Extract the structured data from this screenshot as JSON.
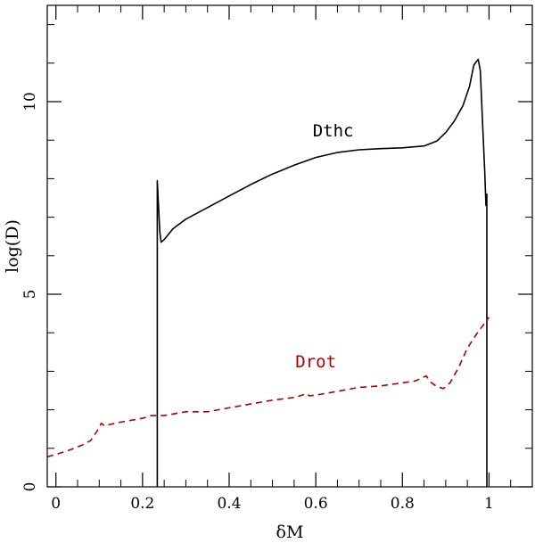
{
  "chart_data": {
    "type": "line",
    "xlabel": "δM",
    "ylabel": "log(D)",
    "xlim": [
      -0.02,
      1.1
    ],
    "ylim": [
      0,
      12.5
    ],
    "grid": false,
    "x_ticks": [
      0,
      0.2,
      0.4,
      0.6,
      0.8,
      1
    ],
    "x_tick_labels": [
      "0",
      "0.2",
      "0.4",
      "0.6",
      "0.8",
      "1"
    ],
    "x_minor_step": 0.05,
    "y_ticks": [
      0,
      5,
      10
    ],
    "y_tick_labels": [
      "0",
      "5",
      "10"
    ],
    "y_minor_step": 1,
    "series": [
      {
        "name": "Dthc",
        "color": "#000000",
        "style": "solid",
        "label_position": {
          "x": 0.64,
          "y": 9.1
        },
        "points": [
          [
            0.234,
            0
          ],
          [
            0.234,
            7.95
          ],
          [
            0.236,
            7.5
          ],
          [
            0.24,
            6.6
          ],
          [
            0.243,
            6.35
          ],
          [
            0.25,
            6.42
          ],
          [
            0.27,
            6.7
          ],
          [
            0.3,
            6.95
          ],
          [
            0.35,
            7.25
          ],
          [
            0.4,
            7.55
          ],
          [
            0.45,
            7.85
          ],
          [
            0.5,
            8.12
          ],
          [
            0.55,
            8.35
          ],
          [
            0.6,
            8.55
          ],
          [
            0.65,
            8.68
          ],
          [
            0.7,
            8.75
          ],
          [
            0.75,
            8.78
          ],
          [
            0.8,
            8.8
          ],
          [
            0.85,
            8.85
          ],
          [
            0.88,
            8.98
          ],
          [
            0.9,
            9.2
          ],
          [
            0.92,
            9.5
          ],
          [
            0.94,
            9.9
          ],
          [
            0.955,
            10.4
          ],
          [
            0.965,
            10.95
          ],
          [
            0.975,
            11.1
          ],
          [
            0.98,
            10.8
          ],
          [
            0.985,
            9.5
          ],
          [
            0.99,
            8.2
          ],
          [
            0.993,
            7.3
          ],
          [
            0.995,
            7.6
          ],
          [
            0.995,
            0
          ]
        ]
      },
      {
        "name": "Drot",
        "color": "#b00000",
        "style": "dashed",
        "label_position": {
          "x": 0.6,
          "y": 3.1
        },
        "points": [
          [
            -0.02,
            0.78
          ],
          [
            0.0,
            0.84
          ],
          [
            0.03,
            0.95
          ],
          [
            0.06,
            1.08
          ],
          [
            0.08,
            1.2
          ],
          [
            0.095,
            1.45
          ],
          [
            0.105,
            1.65
          ],
          [
            0.112,
            1.58
          ],
          [
            0.125,
            1.62
          ],
          [
            0.15,
            1.68
          ],
          [
            0.2,
            1.78
          ],
          [
            0.22,
            1.85
          ],
          [
            0.25,
            1.85
          ],
          [
            0.3,
            1.95
          ],
          [
            0.35,
            1.95
          ],
          [
            0.4,
            2.05
          ],
          [
            0.45,
            2.15
          ],
          [
            0.5,
            2.25
          ],
          [
            0.55,
            2.32
          ],
          [
            0.58,
            2.42
          ],
          [
            0.585,
            2.36
          ],
          [
            0.6,
            2.38
          ],
          [
            0.65,
            2.48
          ],
          [
            0.7,
            2.58
          ],
          [
            0.75,
            2.62
          ],
          [
            0.8,
            2.7
          ],
          [
            0.83,
            2.75
          ],
          [
            0.855,
            2.88
          ],
          [
            0.865,
            2.72
          ],
          [
            0.88,
            2.6
          ],
          [
            0.895,
            2.55
          ],
          [
            0.91,
            2.7
          ],
          [
            0.93,
            3.1
          ],
          [
            0.95,
            3.6
          ],
          [
            0.97,
            3.95
          ],
          [
            0.99,
            4.25
          ],
          [
            1.0,
            4.4
          ]
        ]
      }
    ]
  }
}
